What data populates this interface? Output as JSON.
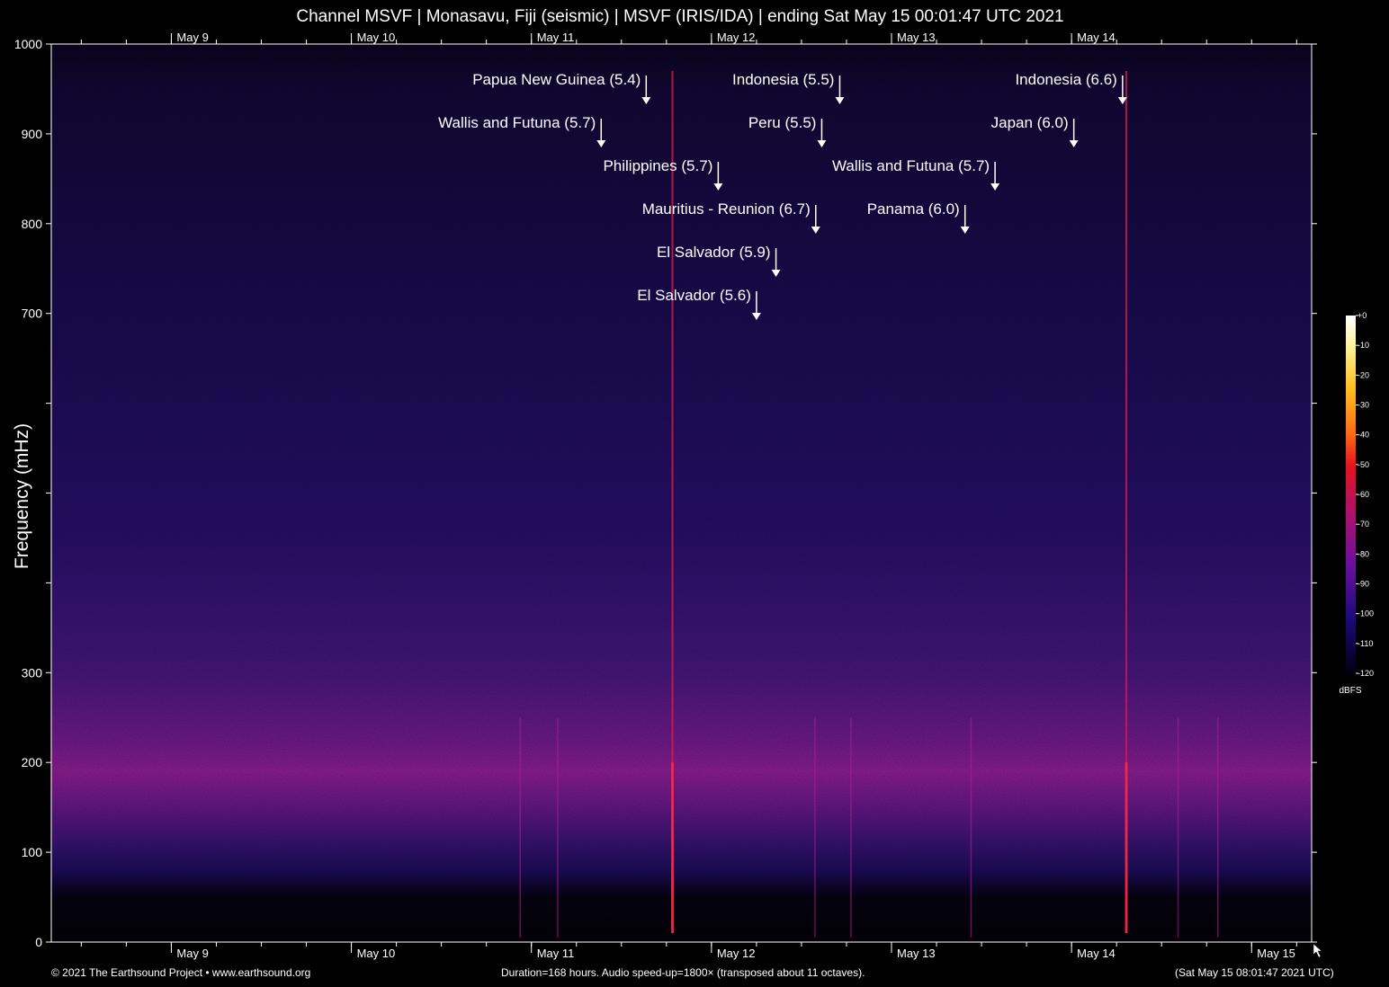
{
  "header": {
    "title": "Channel MSVF | Monasavu, Fiji (seismic) | MSVF (IRIS/IDA) | ending Sat May 15 00:01:47 UTC 2021"
  },
  "footer": {
    "left": "© 2021 The Earthsound Project • www.earthsound.org",
    "center": "Duration=168 hours. Audio speed-up=1800× (transposed about 11 octaves).",
    "right": "(Sat May 15 08:01:47 2021 UTC)"
  },
  "colors": {
    "background": "#000000",
    "noise_low": "#1a0a55",
    "noise_band": "#9b1f9e",
    "event_line": "#e0194a",
    "axis": "#ffffff"
  },
  "chart_data": {
    "type": "heatmap",
    "title": "Channel MSVF | Monasavu, Fiji (seismic) | MSVF (IRIS/IDA) | ending Sat May 15 00:01:47 UTC 2021",
    "xlabel": "",
    "ylabel": "Frequency (mHz)",
    "x_unit": "hours",
    "x_range": [
      0,
      168
    ],
    "ylim": [
      0,
      1000
    ],
    "y_ticks": [
      0,
      100,
      200,
      300,
      400,
      500,
      600,
      700,
      800,
      900,
      1000
    ],
    "y_tick_labels": [
      "0",
      "100",
      "200",
      "300",
      "",
      "",
      "",
      "700",
      "800",
      "900",
      "1000"
    ],
    "x_date_labels": [
      {
        "label": "May  9",
        "hour": 16
      },
      {
        "label": "May 10",
        "hour": 40
      },
      {
        "label": "May 11",
        "hour": 64
      },
      {
        "label": "May 12",
        "hour": 88
      },
      {
        "label": "May 13",
        "hour": 112
      },
      {
        "label": "May 14",
        "hour": 136
      },
      {
        "label": "May 15",
        "hour": 160
      }
    ],
    "x_bottom_labels": [
      "May  9",
      "May 10",
      "May 11",
      "May 12",
      "May 13",
      "May 14",
      "May 15"
    ],
    "x_top_labels": [
      "May  9",
      "May 10",
      "May 11",
      "May 12",
      "May 13",
      "May 14"
    ],
    "events": [
      {
        "label": "Papua New Guinea (5.4)",
        "hour": 79.3,
        "row": 0
      },
      {
        "label": "Indonesia (5.5)",
        "hour": 105.1,
        "row": 0
      },
      {
        "label": "Indonesia (6.6)",
        "hour": 142.8,
        "row": 0
      },
      {
        "label": "Wallis and Futuna (5.7)",
        "hour": 73.3,
        "row": 1
      },
      {
        "label": "Peru (5.5)",
        "hour": 102.7,
        "row": 1
      },
      {
        "label": "Japan (6.0)",
        "hour": 136.3,
        "row": 1
      },
      {
        "label": "Philippines (5.7)",
        "hour": 88.9,
        "row": 2
      },
      {
        "label": "Wallis and Futuna (5.7)",
        "hour": 125.8,
        "row": 2
      },
      {
        "label": "Mauritius - Reunion (6.7)",
        "hour": 101.9,
        "row": 3
      },
      {
        "label": "Panama (6.0)",
        "hour": 121.8,
        "row": 3
      },
      {
        "label": "El Salvador (5.9)",
        "hour": 96.6,
        "row": 4
      },
      {
        "label": "El Salvador (5.6)",
        "hour": 94.0,
        "row": 5
      }
    ],
    "colorbar": {
      "unit": "dBFS",
      "min": -120,
      "max": 0,
      "tick_labels": [
        "+0",
        "-10",
        "-20",
        "-30",
        "-40",
        "-50",
        "-60",
        "-70",
        "-80",
        "-90",
        "-100",
        "-110",
        "-120"
      ]
    }
  }
}
